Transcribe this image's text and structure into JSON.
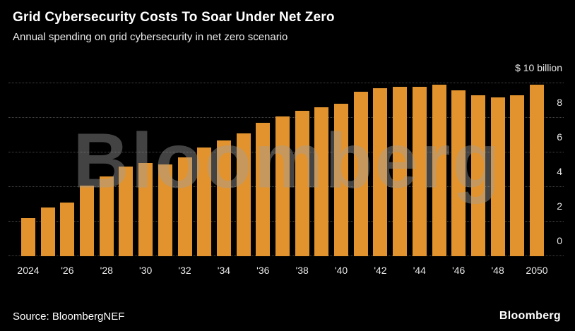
{
  "header": {
    "title": "Grid Cybersecurity Costs To Soar Under Net Zero",
    "subtitle": "Annual spending on grid cybersecurity in net zero scenario"
  },
  "watermark": "Bloomberg",
  "footer": {
    "source": "Source: BloombergNEF",
    "brand": "Bloomberg"
  },
  "colors": {
    "background": "#000000",
    "bar": "#E2932D",
    "gridline": "#454545",
    "text": "#FFFFFF"
  },
  "chart_data": {
    "type": "bar",
    "title": "Grid Cybersecurity Costs To Soar Under Net Zero",
    "subtitle": "Annual spending on grid cybersecurity in net zero scenario",
    "xlabel": "",
    "ylabel": "$ billion",
    "ylim": [
      0,
      10
    ],
    "grid": "dotted horizontal",
    "x": [
      2024,
      2025,
      2026,
      2027,
      2028,
      2029,
      2030,
      2031,
      2032,
      2033,
      2034,
      2035,
      2036,
      2037,
      2038,
      2039,
      2040,
      2041,
      2042,
      2043,
      2044,
      2045,
      2046,
      2047,
      2048,
      2049,
      2050
    ],
    "values": [
      2.2,
      2.8,
      3.1,
      4.1,
      4.6,
      5.2,
      5.4,
      5.3,
      5.7,
      6.3,
      6.7,
      7.1,
      7.7,
      8.1,
      8.4,
      8.6,
      8.8,
      9.5,
      9.7,
      9.8,
      9.8,
      9.9,
      9.6,
      9.3,
      9.2,
      9.3,
      9.9
    ],
    "y_ticks": [
      {
        "value": 10,
        "label": "$ 10 billion"
      },
      {
        "value": 8,
        "label": "8"
      },
      {
        "value": 6,
        "label": "6"
      },
      {
        "value": 4,
        "label": "4"
      },
      {
        "value": 2,
        "label": "2"
      },
      {
        "value": 0,
        "label": "0"
      }
    ],
    "x_ticks": [
      {
        "year": 2024,
        "label": "2024"
      },
      {
        "year": 2026,
        "label": "'26"
      },
      {
        "year": 2028,
        "label": "'28"
      },
      {
        "year": 2030,
        "label": "'30"
      },
      {
        "year": 2032,
        "label": "'32"
      },
      {
        "year": 2034,
        "label": "'34"
      },
      {
        "year": 2036,
        "label": "'36"
      },
      {
        "year": 2038,
        "label": "'38"
      },
      {
        "year": 2040,
        "label": "'40"
      },
      {
        "year": 2042,
        "label": "'42"
      },
      {
        "year": 2044,
        "label": "'44"
      },
      {
        "year": 2046,
        "label": "'46"
      },
      {
        "year": 2048,
        "label": "'48"
      },
      {
        "year": 2050,
        "label": "2050"
      }
    ]
  }
}
